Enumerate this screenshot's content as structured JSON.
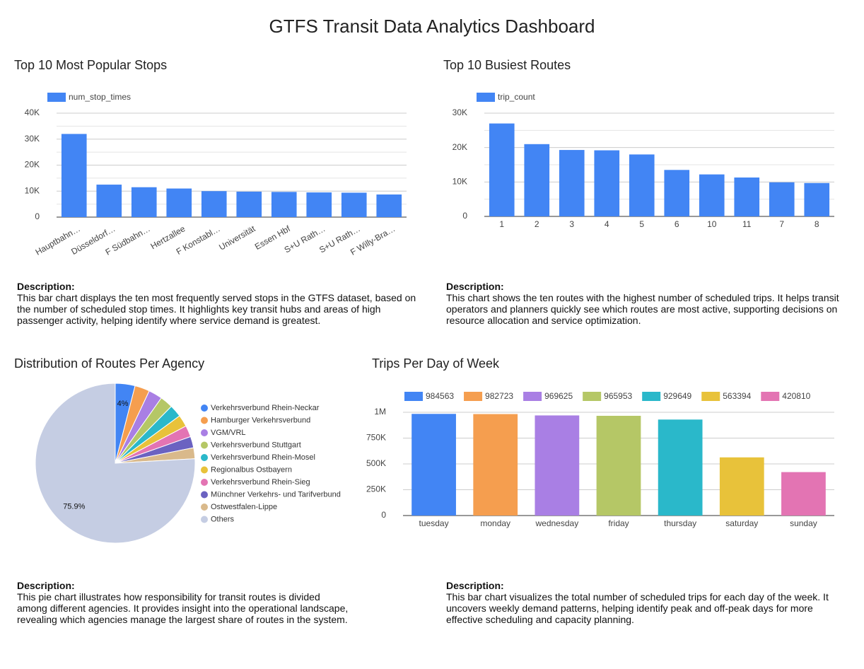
{
  "title": "GTFS Transit Data Analytics Dashboard",
  "chart_data": [
    {
      "type": "bar",
      "title": "Top 10 Most Popular Stops",
      "categories": [
        "Hauptbahn…",
        "Düsseldorf…",
        "F Südbahn…",
        "Hertzallee",
        "F Konstabl…",
        "Universität",
        "Essen Hbf",
        "S+U Rath…",
        "S+U Rath…",
        "F Willy-Bra…"
      ],
      "series": [
        {
          "name": "num_stop_times",
          "color": "#4285f4",
          "values": [
            32000,
            12500,
            11500,
            11000,
            10000,
            9800,
            9700,
            9500,
            9400,
            8700
          ]
        }
      ],
      "ylim": [
        0,
        40000
      ],
      "yticks": [
        0,
        {
          "value": 10000,
          "label": "10K"
        },
        {
          "value": 20000,
          "label": "20K"
        },
        {
          "value": 30000,
          "label": "30K"
        },
        {
          "value": 40000,
          "label": "40K"
        }
      ],
      "minor_yticks": [
        5000,
        15000,
        25000,
        35000
      ],
      "grid": true,
      "legend": "top-left",
      "description_label": "Description:",
      "description": "This bar chart displays the ten most frequently served stops in the GTFS dataset, based on the number of scheduled stop times. It highlights key transit hubs and areas of high passenger activity, helping identify where service demand is greatest."
    },
    {
      "type": "bar",
      "title": "Top 10 Busiest Routes",
      "categories": [
        "1",
        "2",
        "3",
        "4",
        "5",
        "6",
        "10",
        "11",
        "7",
        "8"
      ],
      "series": [
        {
          "name": "trip_count",
          "color": "#4285f4",
          "values": [
            27000,
            21000,
            19300,
            19200,
            18000,
            13500,
            12200,
            11300,
            9900,
            9700
          ]
        }
      ],
      "ylim": [
        0,
        30000
      ],
      "yticks": [
        0,
        {
          "value": 10000,
          "label": "10K"
        },
        {
          "value": 20000,
          "label": "20K"
        },
        {
          "value": 30000,
          "label": "30K"
        }
      ],
      "minor_yticks": [
        5000,
        15000,
        25000
      ],
      "grid": true,
      "legend": "top-left",
      "description_label": "Description:",
      "description": "This chart shows the ten routes with the highest number of scheduled trips. It helps transit operators and planners quickly see which routes are most active, supporting decisions on resource allocation and service optimization."
    },
    {
      "type": "pie",
      "title": "Distribution of Routes Per Agency",
      "categories": [
        "Verkehrsverbund Rhein-Neckar",
        "Hamburger Verkehrsverbund",
        "VGM/VRL",
        "Verkehrsverbund Stuttgart",
        "Verkehrsverbund Rhein-Mosel",
        "Regionalbus Ostbayern",
        "Verkehrsverbund Rhein-Sieg",
        "Münchner Verkehrs- und Tarifverbund",
        "Ostwestfalen-Lippe",
        "Others"
      ],
      "values": [
        4,
        3.0,
        2.8,
        2.6,
        2.5,
        2.4,
        2.3,
        2.3,
        2.2,
        75.9
      ],
      "value_labels": [
        "4%",
        null,
        null,
        null,
        null,
        null,
        null,
        null,
        null,
        "75.9%"
      ],
      "colors": [
        "#4285f4",
        "#f59e4f",
        "#a97fe4",
        "#b5c766",
        "#2ab8ca",
        "#e8c23a",
        "#e374b3",
        "#6b62c1",
        "#d9b98b",
        "#c5cde3"
      ],
      "legend": "right",
      "description_label": "Description:",
      "description": "This pie chart illustrates how responsibility for transit routes is divided among different agencies. It provides insight into the operational landscape, revealing which agencies manage the largest share of routes in the system."
    },
    {
      "type": "bar",
      "title": "Trips Per Day of Week",
      "categories": [
        "tuesday",
        "monday",
        "wednesday",
        "friday",
        "thursday",
        "saturday",
        "sunday"
      ],
      "values": [
        984563,
        982723,
        969625,
        965953,
        929649,
        563394,
        420810
      ],
      "colors": [
        "#4285f4",
        "#f59e4f",
        "#a97fe4",
        "#b5c766",
        "#2ab8ca",
        "#e8c23a",
        "#e374b3"
      ],
      "ylim": [
        0,
        1000000
      ],
      "yticks": [
        0,
        {
          "value": 250000,
          "label": "250K"
        },
        {
          "value": 500000,
          "label": "500K"
        },
        {
          "value": 750000,
          "label": "750K"
        },
        {
          "value": 1000000,
          "label": "1M"
        }
      ],
      "grid": true,
      "legend": "top",
      "description_label": "Description:",
      "description": "This bar chart visualizes the total number of scheduled trips for each day of the week. It uncovers weekly demand patterns, helping identify peak and off-peak days for more effective scheduling and capacity planning."
    }
  ]
}
